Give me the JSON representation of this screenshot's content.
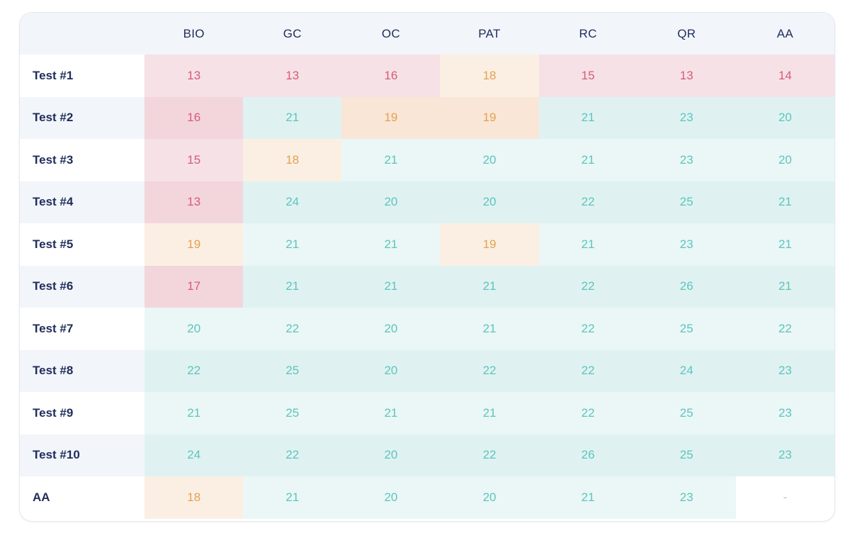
{
  "table": {
    "corner": "",
    "columns": [
      "BIO",
      "GC",
      "OC",
      "PAT",
      "RC",
      "QR",
      "AA"
    ],
    "rows": [
      {
        "label": "Test #1",
        "values": [
          "13",
          "13",
          "16",
          "18",
          "15",
          "13",
          "14"
        ],
        "levels": [
          "red",
          "red",
          "red",
          "orange",
          "red",
          "red",
          "red"
        ]
      },
      {
        "label": "Test #2",
        "values": [
          "16",
          "21",
          "19",
          "19",
          "21",
          "23",
          "20"
        ],
        "levels": [
          "red",
          "teal",
          "orange",
          "orange",
          "teal",
          "teal",
          "teal"
        ]
      },
      {
        "label": "Test #3",
        "values": [
          "15",
          "18",
          "21",
          "20",
          "21",
          "23",
          "20"
        ],
        "levels": [
          "red",
          "orange",
          "teal",
          "teal",
          "teal",
          "teal",
          "teal"
        ]
      },
      {
        "label": "Test #4",
        "values": [
          "13",
          "24",
          "20",
          "20",
          "22",
          "25",
          "21"
        ],
        "levels": [
          "red",
          "teal",
          "teal",
          "teal",
          "teal",
          "teal",
          "teal"
        ]
      },
      {
        "label": "Test #5",
        "values": [
          "19",
          "21",
          "21",
          "19",
          "21",
          "23",
          "21"
        ],
        "levels": [
          "orange",
          "teal",
          "teal",
          "orange",
          "teal",
          "teal",
          "teal"
        ]
      },
      {
        "label": "Test #6",
        "values": [
          "17",
          "21",
          "21",
          "21",
          "22",
          "26",
          "21"
        ],
        "levels": [
          "red",
          "teal",
          "teal",
          "teal",
          "teal",
          "teal",
          "teal"
        ]
      },
      {
        "label": "Test #7",
        "values": [
          "20",
          "22",
          "20",
          "21",
          "22",
          "25",
          "22"
        ],
        "levels": [
          "teal",
          "teal",
          "teal",
          "teal",
          "teal",
          "teal",
          "teal"
        ]
      },
      {
        "label": "Test #8",
        "values": [
          "22",
          "25",
          "20",
          "22",
          "22",
          "24",
          "23"
        ],
        "levels": [
          "teal",
          "teal",
          "teal",
          "teal",
          "teal",
          "teal",
          "teal"
        ]
      },
      {
        "label": "Test #9",
        "values": [
          "21",
          "25",
          "21",
          "21",
          "22",
          "25",
          "23"
        ],
        "levels": [
          "teal",
          "teal",
          "teal",
          "teal",
          "teal",
          "teal",
          "teal"
        ]
      },
      {
        "label": "Test #10",
        "values": [
          "24",
          "22",
          "20",
          "22",
          "26",
          "25",
          "23"
        ],
        "levels": [
          "teal",
          "teal",
          "teal",
          "teal",
          "teal",
          "teal",
          "teal"
        ]
      },
      {
        "label": "AA",
        "values": [
          "18",
          "21",
          "20",
          "20",
          "21",
          "23",
          "-"
        ],
        "levels": [
          "orange",
          "teal",
          "teal",
          "teal",
          "teal",
          "teal",
          "none"
        ]
      }
    ]
  },
  "colors": {
    "red_text": "#d95b76",
    "orange_text": "#e4a150",
    "teal_text": "#5ec4bd",
    "red_bg_odd": "#f5e1e6",
    "red_bg_even": "#f2d6dc",
    "orange_bg_odd": "#fbefe3",
    "orange_bg_even": "#f9e6d6",
    "teal_bg_odd": "#eaf7f6",
    "teal_bg_even": "#dff2f1",
    "header_bg": "#f2f5fa",
    "label_text": "#1f2d5a"
  }
}
